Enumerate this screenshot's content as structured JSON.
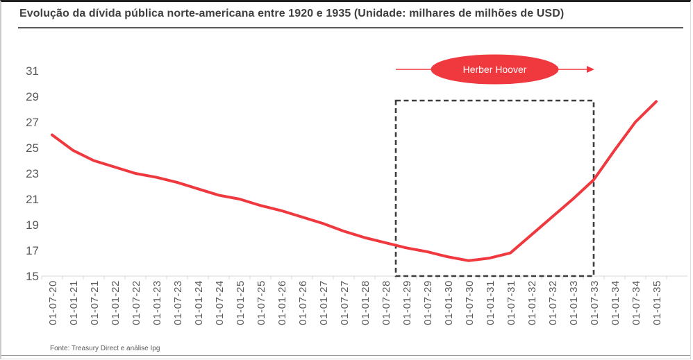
{
  "header": {
    "title": "Evolução da dívida pública norte-americana entre 1920 e 1935 (Unidade: milhares de milhões de USD)"
  },
  "footer": {
    "source": "Fonte: Treasury Direct e análise Ipg"
  },
  "colors": {
    "accent_red": "#F0383F",
    "axis_text": "#595959",
    "axis_line": "#d9d9d9",
    "dashed_box": "#3d3d3d",
    "title_text": "#3f3f3f",
    "annotation_text": "#ffffff"
  },
  "chart_data": {
    "type": "line",
    "title": "Evolução da dívida pública norte-americana entre 1920 e 1935 (Unidade: milhares de milhões de USD)",
    "xlabel": "",
    "ylabel": "",
    "ylim": [
      15,
      31
    ],
    "yticks": [
      15,
      17,
      19,
      21,
      23,
      25,
      27,
      29,
      31
    ],
    "grid": false,
    "legend": "none",
    "categories": [
      "01-07-20",
      "01-01-21",
      "01-07-21",
      "01-01-22",
      "01-07-22",
      "01-01-23",
      "01-07-23",
      "01-01-24",
      "01-07-24",
      "01-01-25",
      "01-07-25",
      "01-01-26",
      "01-07-26",
      "01-01-27",
      "01-07-27",
      "01-01-28",
      "01-07-28",
      "01-01-29",
      "01-07-29",
      "01-01-30",
      "01-07-30",
      "01-01-31",
      "01-07-31",
      "01-01-32",
      "01-07-32",
      "01-01-33",
      "01-07-33",
      "01-01-34",
      "01-07-34",
      "01-01-35"
    ],
    "series": [
      {
        "color": "#F0383F",
        "values": [
          26.0,
          24.8,
          24.0,
          23.5,
          23.0,
          22.7,
          22.3,
          21.8,
          21.3,
          21.0,
          20.5,
          20.1,
          19.6,
          19.1,
          18.5,
          18.0,
          17.6,
          17.2,
          16.9,
          16.5,
          16.2,
          16.4,
          16.8,
          18.2,
          19.6,
          21.0,
          22.5,
          24.8,
          27.0,
          28.6
        ]
      }
    ],
    "annotation": {
      "label": "Herber Hoover",
      "box_from_category": "01-01-29",
      "box_to_category": "01-07-33"
    }
  }
}
